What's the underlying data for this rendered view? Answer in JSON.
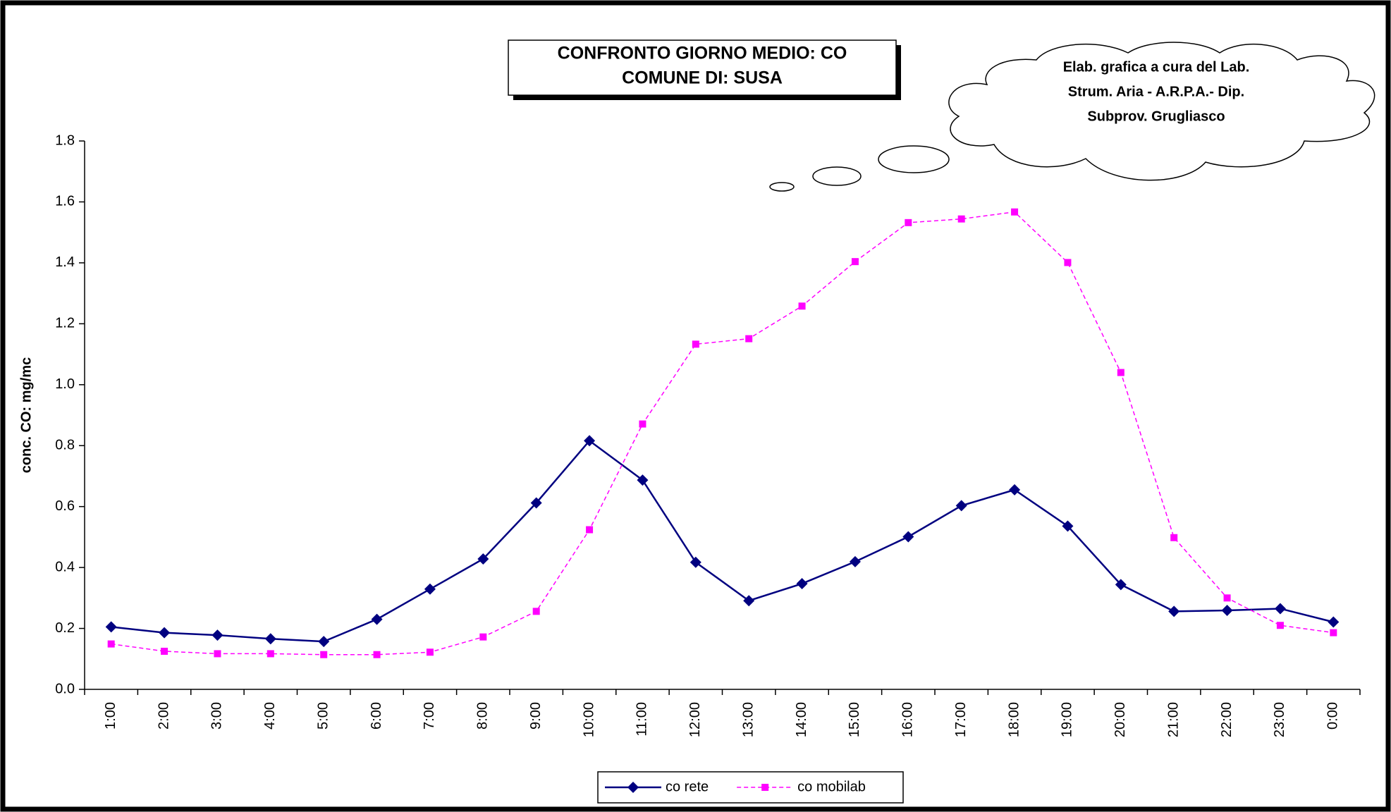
{
  "chart_data": {
    "type": "line",
    "title": [
      "CONFRONTO GIORNO MEDIO: CO",
      "COMUNE DI: SUSA"
    ],
    "annotation": [
      "Elab. grafica a cura del Lab.",
      "Strum. Aria - A.R.P.A.- Dip.",
      "Subprov. Grugliasco"
    ],
    "y_label": "conc. CO: mg/mc",
    "categories": [
      "1:00",
      "2:00",
      "3:00",
      "4:00",
      "5:00",
      "6:00",
      "7:00",
      "8:00",
      "9:00",
      "10:00",
      "11:00",
      "12:00",
      "13:00",
      "14:00",
      "15:00",
      "16:00",
      "17:00",
      "18:00",
      "19:00",
      "20:00",
      "21:00",
      "22:00",
      "23:00",
      "0:00"
    ],
    "series": [
      {
        "name": "co rete",
        "color": "#000080",
        "marker": "diamond",
        "dashed": false,
        "values": [
          0.205,
          0.186,
          0.178,
          0.166,
          0.157,
          0.23,
          0.329,
          0.428,
          0.612,
          0.816,
          0.687,
          0.417,
          0.291,
          0.347,
          0.419,
          0.501,
          0.603,
          0.655,
          0.536,
          0.344,
          0.256,
          0.259,
          0.265,
          0.221
        ]
      },
      {
        "name": "co mobilab",
        "color": "#ff00ff",
        "marker": "square",
        "dashed": true,
        "values": [
          0.149,
          0.125,
          0.117,
          0.117,
          0.114,
          0.114,
          0.122,
          0.172,
          0.256,
          0.524,
          0.871,
          1.133,
          1.151,
          1.258,
          1.404,
          1.532,
          1.544,
          1.567,
          1.401,
          1.04,
          0.498,
          0.3,
          0.21,
          0.186
        ]
      }
    ],
    "ylim": [
      0,
      1.8
    ],
    "yticks": [
      {
        "value": 0,
        "label": "0.0"
      },
      0.2,
      0.4,
      0.6,
      0.8,
      {
        "value": 1,
        "label": "1.0"
      },
      1.2,
      1.4,
      1.6,
      1.8
    ],
    "legend": "bottom"
  }
}
